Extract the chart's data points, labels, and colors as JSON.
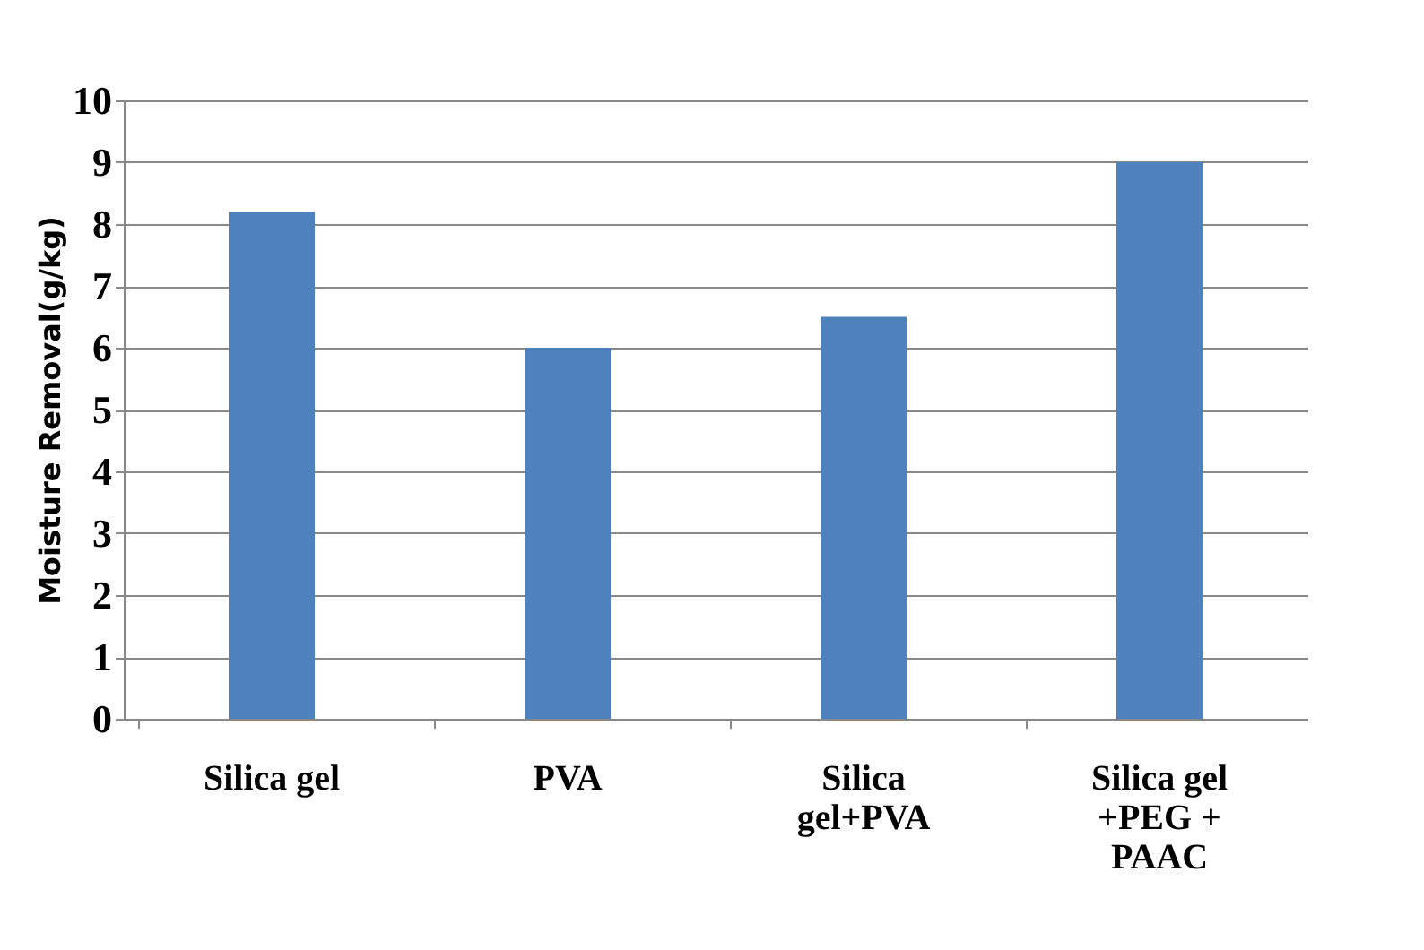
{
  "chart_data": {
    "type": "bar",
    "ylabel": "Moisture Removal(g/kg)",
    "categories": [
      "Silica gel",
      "PVA",
      "Silica gel+PVA",
      "Silica gel +PEG + PAAC"
    ],
    "values": [
      8.2,
      6.0,
      6.5,
      9.0
    ],
    "color": "#4f81bd",
    "ylim": [
      0,
      10
    ],
    "yticks": [
      0,
      1,
      2,
      3,
      4,
      5,
      6,
      7,
      8,
      9,
      10
    ],
    "grid": "y"
  }
}
